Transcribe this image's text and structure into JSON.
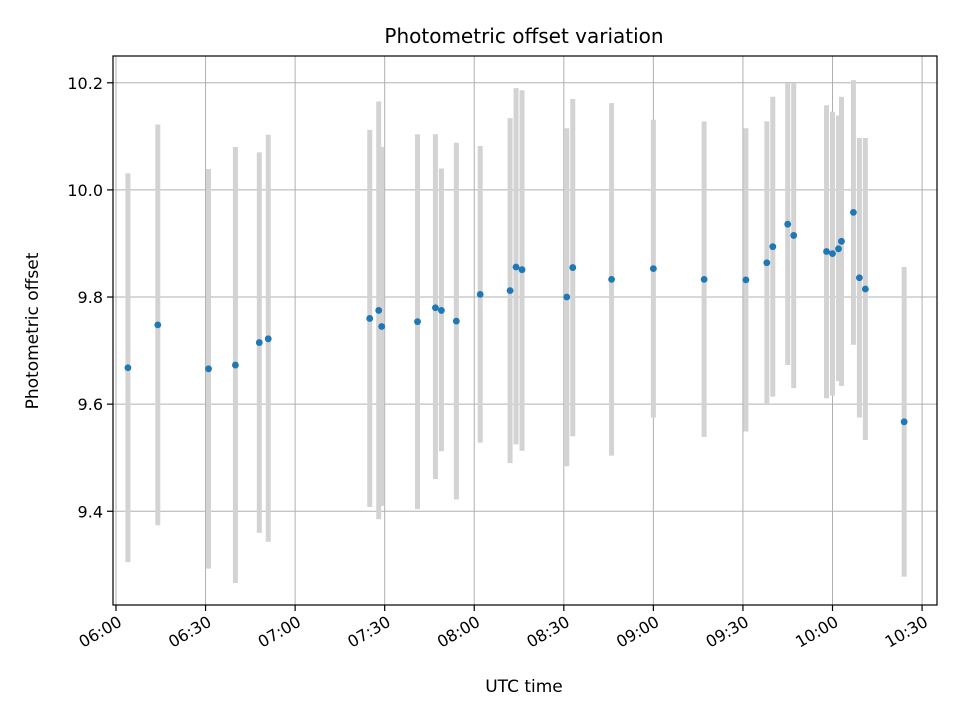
{
  "chart_data": {
    "type": "scatter",
    "title": "Photometric offset variation",
    "xlabel": "UTC time",
    "ylabel": "Photometric offset",
    "xlim": [
      "05:59",
      "10:35"
    ],
    "ylim": [
      9.225,
      10.25
    ],
    "x_ticks": [
      "06:00",
      "06:30",
      "07:00",
      "07:30",
      "08:00",
      "08:30",
      "09:00",
      "09:30",
      "10:00",
      "10:30"
    ],
    "y_ticks": [
      9.4,
      9.6,
      9.8,
      10.0,
      10.2
    ],
    "y_tick_labels": [
      "9.4",
      "9.6",
      "9.8",
      "10.0",
      "10.2"
    ],
    "grid": true,
    "point_color": "#1f77b4",
    "errorbar_color": "#d3d3d3",
    "points": [
      {
        "x": "06:04",
        "y": 9.668,
        "low": 9.305,
        "high": 10.031
      },
      {
        "x": "06:14",
        "y": 9.748,
        "low": 9.374,
        "high": 10.122
      },
      {
        "x": "06:31",
        "y": 9.666,
        "low": 9.293,
        "high": 10.039
      },
      {
        "x": "06:40",
        "y": 9.673,
        "low": 9.266,
        "high": 10.08
      },
      {
        "x": "06:48",
        "y": 9.715,
        "low": 9.36,
        "high": 10.07
      },
      {
        "x": "06:51",
        "y": 9.722,
        "low": 9.343,
        "high": 10.103
      },
      {
        "x": "07:25",
        "y": 9.76,
        "low": 9.408,
        "high": 10.112
      },
      {
        "x": "07:28",
        "y": 9.775,
        "low": 9.385,
        "high": 10.165
      },
      {
        "x": "07:29",
        "y": 9.745,
        "low": 9.41,
        "high": 10.08
      },
      {
        "x": "07:41",
        "y": 9.754,
        "low": 9.404,
        "high": 10.104
      },
      {
        "x": "07:47",
        "y": 9.78,
        "low": 9.46,
        "high": 10.104
      },
      {
        "x": "07:49",
        "y": 9.775,
        "low": 9.512,
        "high": 10.04
      },
      {
        "x": "07:54",
        "y": 9.755,
        "low": 9.422,
        "high": 10.088
      },
      {
        "x": "08:02",
        "y": 9.805,
        "low": 9.528,
        "high": 10.082
      },
      {
        "x": "08:12",
        "y": 9.812,
        "low": 9.49,
        "high": 10.134
      },
      {
        "x": "08:14",
        "y": 9.856,
        "low": 9.525,
        "high": 10.19
      },
      {
        "x": "08:16",
        "y": 9.851,
        "low": 9.513,
        "high": 10.186
      },
      {
        "x": "08:31",
        "y": 9.8,
        "low": 9.484,
        "high": 10.115
      },
      {
        "x": "08:33",
        "y": 9.855,
        "low": 9.54,
        "high": 10.17
      },
      {
        "x": "08:46",
        "y": 9.833,
        "low": 9.504,
        "high": 10.162
      },
      {
        "x": "09:00",
        "y": 9.853,
        "low": 9.575,
        "high": 10.131
      },
      {
        "x": "09:17",
        "y": 9.833,
        "low": 9.539,
        "high": 10.128
      },
      {
        "x": "09:31",
        "y": 9.832,
        "low": 9.549,
        "high": 10.115
      },
      {
        "x": "09:38",
        "y": 9.864,
        "low": 9.6,
        "high": 10.128
      },
      {
        "x": "09:40",
        "y": 9.894,
        "low": 9.614,
        "high": 10.174
      },
      {
        "x": "09:45",
        "y": 9.936,
        "low": 9.673,
        "high": 10.199
      },
      {
        "x": "09:47",
        "y": 9.915,
        "low": 9.63,
        "high": 10.199
      },
      {
        "x": "09:58",
        "y": 9.885,
        "low": 9.611,
        "high": 10.158
      },
      {
        "x": "10:00",
        "y": 9.881,
        "low": 9.616,
        "high": 10.146
      },
      {
        "x": "10:02",
        "y": 9.89,
        "low": 9.643,
        "high": 10.139
      },
      {
        "x": "10:03",
        "y": 9.904,
        "low": 9.634,
        "high": 10.174
      },
      {
        "x": "10:07",
        "y": 9.958,
        "low": 9.711,
        "high": 10.205
      },
      {
        "x": "10:09",
        "y": 9.836,
        "low": 9.575,
        "high": 10.097
      },
      {
        "x": "10:11",
        "y": 9.815,
        "low": 9.533,
        "high": 10.097
      },
      {
        "x": "10:24",
        "y": 9.567,
        "low": 9.278,
        "high": 9.856
      }
    ]
  }
}
